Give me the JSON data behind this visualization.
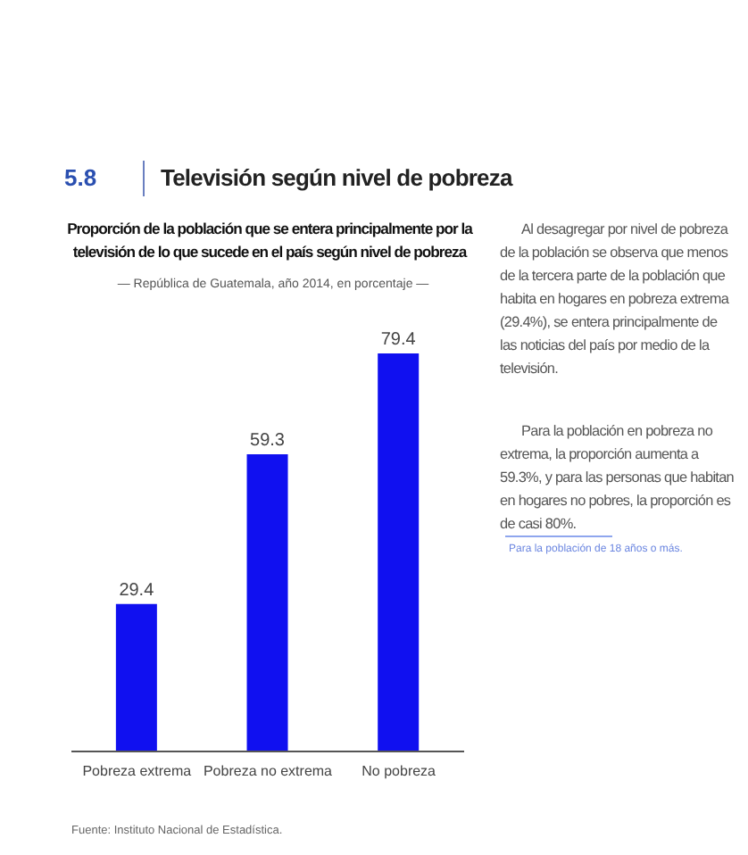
{
  "chart_data": {
    "type": "bar",
    "title": "Proporción de la población que se entera principalmente por la televisión de lo que sucede en el país según nivel de pobreza",
    "subtitle": "— República de Guatemala, año 2014, en porcentaje —",
    "categories": [
      "Pobreza extrema",
      "Pobreza no extrema",
      "No pobreza"
    ],
    "values": [
      29.4,
      59.3,
      79.4
    ],
    "color": "#1010f0",
    "data_labels": true,
    "grid": false,
    "legend": false,
    "annotations": [
      "5.8",
      "Televisión según nivel de pobreza",
      "Al desagregar por nivel de pobreza de la población se observa que menos de la tercera parte de la población que habita en hogares en pobreza extrema (29.4%), se entera principalmente de las noticias del país por medio de la televisión.",
      "Para la población en pobreza no extrema, la proporción aumenta a 59.3%, y para las personas que habitan en hogares no pobres, la proporción es de casi 80%.",
      "Para la población de 18 años o más.",
      "Fuente: Instituto Nacional de Estadística."
    ]
  }
}
